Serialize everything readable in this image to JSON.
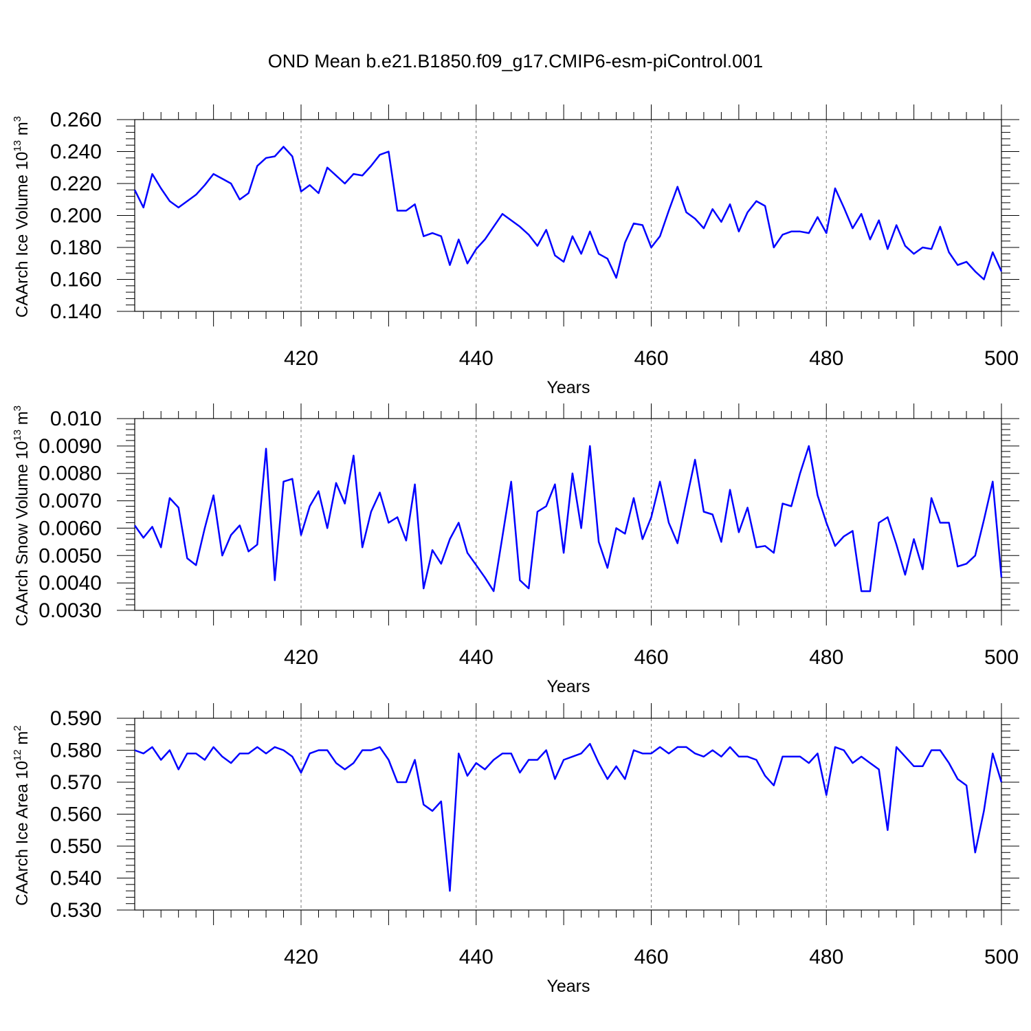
{
  "title": "OND Mean b.e21.B1850.f09_g17.CMIP6-esm-piControl.001",
  "line_color": "#0000ff",
  "chart_data": [
    {
      "type": "line",
      "title": "",
      "xlabel": "Years",
      "ylabel": "CAArch Ice Volume 10",
      "ylabel_exp": "13",
      "ylabel_unit": " m",
      "ylabel_unit_exp": "3",
      "xlim": [
        401,
        500
      ],
      "ylim": [
        0.14,
        0.26
      ],
      "yticks": [
        0.14,
        0.16,
        0.18,
        0.2,
        0.22,
        0.24,
        0.26
      ],
      "ytick_labels": [
        "0.140",
        "0.160",
        "0.180",
        "0.200",
        "0.220",
        "0.240",
        "0.260"
      ],
      "xticks": [
        420,
        440,
        460,
        480,
        500
      ],
      "xtick_labels": [
        "420",
        "440",
        "460",
        "480",
        "500"
      ],
      "grid": "vertical dashed at major x ticks",
      "x_start": 401,
      "series": [
        {
          "values": [
            0.216,
            0.205,
            0.226,
            0.217,
            0.209,
            0.205,
            0.209,
            0.213,
            0.219,
            0.226,
            0.223,
            0.22,
            0.21,
            0.214,
            0.231,
            0.236,
            0.237,
            0.243,
            0.237,
            0.215,
            0.219,
            0.214,
            0.23,
            0.225,
            0.22,
            0.226,
            0.225,
            0.231,
            0.238,
            0.24,
            0.203,
            0.203,
            0.207,
            0.187,
            0.189,
            0.187,
            0.169,
            0.185,
            0.17,
            0.179,
            0.185,
            0.193,
            0.201,
            0.197,
            0.193,
            0.188,
            0.181,
            0.191,
            0.175,
            0.171,
            0.187,
            0.176,
            0.19,
            0.176,
            0.173,
            0.161,
            0.183,
            0.195,
            0.194,
            0.18,
            0.187,
            0.203,
            0.218,
            0.202,
            0.198,
            0.192,
            0.204,
            0.196,
            0.207,
            0.19,
            0.202,
            0.209,
            0.206,
            0.18,
            0.188,
            0.19,
            0.19,
            0.189,
            0.199,
            0.189,
            0.217,
            0.205,
            0.192,
            0.201,
            0.185,
            0.197,
            0.179,
            0.194,
            0.181,
            0.176,
            0.18,
            0.179,
            0.193,
            0.177,
            0.169,
            0.171,
            0.165,
            0.16,
            0.177,
            0.165
          ]
        }
      ]
    },
    {
      "type": "line",
      "title": "",
      "xlabel": "Years",
      "ylabel": "CAArch Snow Volume 10",
      "ylabel_exp": "13",
      "ylabel_unit": " m",
      "ylabel_unit_exp": "3",
      "xlim": [
        401,
        500
      ],
      "ylim": [
        0.003,
        0.01
      ],
      "yticks": [
        0.003,
        0.004,
        0.005,
        0.006,
        0.007,
        0.008,
        0.009,
        0.01
      ],
      "ytick_labels": [
        "0.0030",
        "0.0040",
        "0.0050",
        "0.0060",
        "0.0070",
        "0.0080",
        "0.0090",
        "0.010"
      ],
      "xticks": [
        420,
        440,
        460,
        480,
        500
      ],
      "xtick_labels": [
        "420",
        "440",
        "460",
        "480",
        "500"
      ],
      "grid": "vertical dashed at major x ticks",
      "x_start": 401,
      "series": [
        {
          "values": [
            0.0061,
            0.00565,
            0.00605,
            0.0053,
            0.0071,
            0.00675,
            0.0049,
            0.00465,
            0.006,
            0.0072,
            0.005,
            0.00575,
            0.0061,
            0.00515,
            0.0054,
            0.0089,
            0.0041,
            0.0077,
            0.0078,
            0.00575,
            0.0068,
            0.00735,
            0.006,
            0.00765,
            0.0069,
            0.00865,
            0.0053,
            0.0066,
            0.0073,
            0.0062,
            0.0064,
            0.00555,
            0.0076,
            0.0038,
            0.0052,
            0.0047,
            0.0056,
            0.0062,
            0.0051,
            0.00465,
            0.0042,
            0.0037,
            0.0057,
            0.0077,
            0.0041,
            0.0038,
            0.0066,
            0.0068,
            0.0076,
            0.0051,
            0.008,
            0.006,
            0.009,
            0.0055,
            0.00455,
            0.006,
            0.0058,
            0.0071,
            0.0056,
            0.0064,
            0.0077,
            0.0062,
            0.00545,
            0.007,
            0.0085,
            0.0066,
            0.0065,
            0.0055,
            0.0074,
            0.00585,
            0.00675,
            0.0053,
            0.00535,
            0.0051,
            0.0069,
            0.0068,
            0.008,
            0.009,
            0.0072,
            0.0062,
            0.00535,
            0.0057,
            0.0059,
            0.0037,
            0.0037,
            0.0062,
            0.0064,
            0.0054,
            0.0043,
            0.0056,
            0.0045,
            0.0071,
            0.0062,
            0.0062,
            0.0046,
            0.0047,
            0.005,
            0.0063,
            0.0077,
            0.0042
          ]
        }
      ]
    },
    {
      "type": "line",
      "title": "",
      "xlabel": "Years",
      "ylabel": "CAArch Ice Area 10",
      "ylabel_exp": "12",
      "ylabel_unit": " m",
      "ylabel_unit_exp": "2",
      "xlim": [
        401,
        500
      ],
      "ylim": [
        0.53,
        0.59
      ],
      "yticks": [
        0.53,
        0.54,
        0.55,
        0.56,
        0.57,
        0.58,
        0.59
      ],
      "ytick_labels": [
        "0.530",
        "0.540",
        "0.550",
        "0.560",
        "0.570",
        "0.580",
        "0.590"
      ],
      "xticks": [
        420,
        440,
        460,
        480,
        500
      ],
      "xtick_labels": [
        "420",
        "440",
        "460",
        "480",
        "500"
      ],
      "grid": "vertical dashed at major x ticks",
      "x_start": 401,
      "series": [
        {
          "values": [
            0.58,
            0.579,
            0.581,
            0.577,
            0.58,
            0.574,
            0.579,
            0.579,
            0.577,
            0.581,
            0.578,
            0.576,
            0.579,
            0.579,
            0.581,
            0.579,
            0.581,
            0.58,
            0.578,
            0.573,
            0.579,
            0.58,
            0.58,
            0.576,
            0.574,
            0.576,
            0.58,
            0.58,
            0.581,
            0.577,
            0.57,
            0.57,
            0.577,
            0.563,
            0.561,
            0.564,
            0.536,
            0.579,
            0.572,
            0.576,
            0.574,
            0.577,
            0.579,
            0.579,
            0.573,
            0.577,
            0.577,
            0.58,
            0.571,
            0.577,
            0.578,
            0.579,
            0.582,
            0.576,
            0.571,
            0.575,
            0.571,
            0.58,
            0.579,
            0.579,
            0.581,
            0.579,
            0.581,
            0.581,
            0.579,
            0.578,
            0.58,
            0.578,
            0.581,
            0.578,
            0.578,
            0.577,
            0.572,
            0.569,
            0.578,
            0.578,
            0.578,
            0.576,
            0.579,
            0.566,
            0.581,
            0.58,
            0.576,
            0.578,
            0.576,
            0.574,
            0.555,
            0.581,
            0.578,
            0.575,
            0.575,
            0.58,
            0.58,
            0.576,
            0.571,
            0.569,
            0.548,
            0.561,
            0.579,
            0.57
          ]
        }
      ]
    }
  ]
}
